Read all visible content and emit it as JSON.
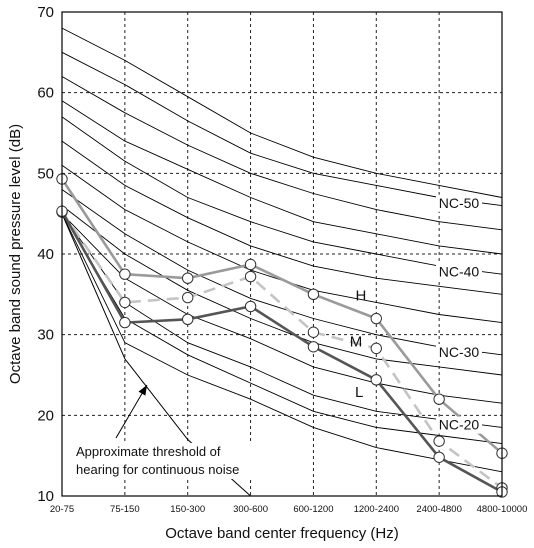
{
  "chart_data": {
    "type": "line",
    "xlabel": "Octave band center frequency (Hz)",
    "ylabel": "Octave band  sound pressure level (dB)",
    "categories": [
      "20-75",
      "75-150",
      "150-300",
      "300-600",
      "600-1200",
      "1200-2400",
      "2400-4800",
      "4800-10000"
    ],
    "ylim": [
      10,
      70
    ],
    "yticks": [
      10,
      20,
      30,
      40,
      50,
      60,
      70
    ],
    "grid": true,
    "nc_curves": [
      {
        "label": "",
        "values": [
          68.0,
          64.0,
          59.5,
          55.0,
          52.0,
          50.0,
          48.5,
          47.0
        ]
      },
      {
        "label": "NC-50",
        "values": [
          65.0,
          61.0,
          56.5,
          52.5,
          50.0,
          48.5,
          47.0,
          46.0
        ]
      },
      {
        "label": "",
        "values": [
          62.0,
          57.5,
          53.5,
          50.0,
          47.5,
          45.5,
          44.0,
          43.0
        ]
      },
      {
        "label": "",
        "values": [
          59.0,
          54.0,
          50.5,
          47.0,
          44.0,
          42.5,
          41.0,
          40.0
        ]
      },
      {
        "label": "NC-40",
        "values": [
          57.0,
          51.5,
          47.0,
          44.0,
          41.5,
          40.0,
          38.5,
          37.5
        ]
      },
      {
        "label": "",
        "values": [
          54.0,
          48.5,
          44.5,
          41.0,
          38.5,
          37.0,
          36.0,
          35.0
        ]
      },
      {
        "label": "",
        "values": [
          51.0,
          45.5,
          41.5,
          38.0,
          35.5,
          34.0,
          32.5,
          31.5
        ]
      },
      {
        "label": "NC-30",
        "values": [
          48.0,
          42.5,
          38.0,
          34.5,
          32.0,
          30.0,
          28.5,
          27.5
        ]
      },
      {
        "label": "",
        "values": [
          46.0,
          40.0,
          35.5,
          32.0,
          29.0,
          27.0,
          26.0,
          25.0
        ]
      },
      {
        "label": "",
        "values": [
          45.0,
          37.0,
          32.5,
          29.5,
          26.0,
          24.0,
          22.5,
          21.5
        ]
      },
      {
        "label": "NC-20",
        "values": [
          45.0,
          34.0,
          29.0,
          26.0,
          22.5,
          20.5,
          19.5,
          18.5
        ]
      },
      {
        "label": "",
        "values": [
          45.0,
          32.0,
          27.5,
          24.0,
          20.5,
          18.5,
          17.5,
          16.5
        ]
      },
      {
        "label": "",
        "values": [
          45.0,
          29.0,
          25.0,
          22.0,
          18.5,
          16.0,
          14.5,
          13.0
        ]
      }
    ],
    "hearing_threshold": {
      "values": [
        45.0,
        27.0,
        17.0,
        10.0
      ]
    },
    "series": [
      {
        "name": "H",
        "color": "#9a9a9a",
        "dash": false,
        "values": [
          49.3,
          37.5,
          37.0,
          38.7,
          35.0,
          32.0,
          22.0,
          15.3
        ]
      },
      {
        "name": "M",
        "color": "#c4c4c4",
        "dash": true,
        "values": [
          45.2,
          34.0,
          34.6,
          37.2,
          30.3,
          28.3,
          16.8,
          11.0
        ]
      },
      {
        "name": "L",
        "color": "#555555",
        "dash": false,
        "values": [
          45.3,
          31.5,
          31.9,
          33.5,
          28.5,
          24.4,
          14.8,
          10.5
        ]
      }
    ],
    "annotation": [
      "Approximate threshold of",
      "hearing for continuous noise"
    ]
  }
}
